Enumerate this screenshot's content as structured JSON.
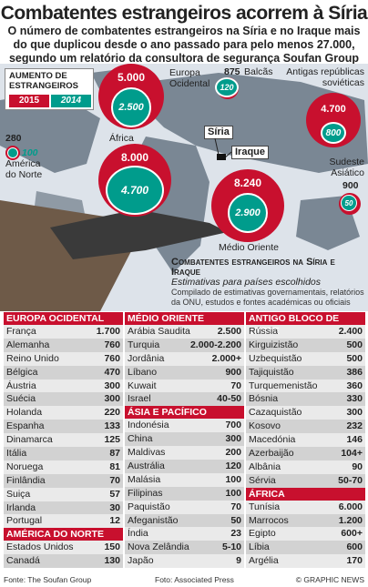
{
  "title": "Combatentes estrangeiros acorrem à Síria",
  "subtitle": "O número de combatentes estrangeiros na Síria e no Iraque mais do que duplicou desde o ano passado para pelo menos 27.000, segundo um relatório da consultora de segurança Soufan Group",
  "legend": {
    "title": "AUMENTO DE ESTRANGEIROS",
    "y2015": "2015",
    "y2014": "2014"
  },
  "colors": {
    "red": "#c8102e",
    "teal": "#009c8c"
  },
  "map": {
    "regions": [
      {
        "name": "Europa Ocidental",
        "v2015": "5.000",
        "v2014": "2.500"
      },
      {
        "name": "Balcãs",
        "v2015": "875",
        "v2014": "120"
      },
      {
        "name": "Antigas repúblicas soviéticas",
        "v2015": "4.700",
        "v2014": "800"
      },
      {
        "name": "América do Norte",
        "v2015": "280",
        "v2014": "100"
      },
      {
        "name": "África",
        "v2015": "8.000",
        "v2014": "4.700"
      },
      {
        "name": "Médio Oriente",
        "v2015": "8.240",
        "v2014": "2.900"
      },
      {
        "name": "Sudeste Asiático",
        "v2015": "900",
        "v2014": "50"
      }
    ],
    "siria": "Síria",
    "iraque": "Iraque"
  },
  "chart_info": {
    "title": "Combatentes estrangeiros na Síria e Iraque",
    "subtitle": "Estimativas para países escolhidos",
    "note": "Compilado de estimativas governamentais, relatórios da ONU, estudos e fontes académicas ou oficiais"
  },
  "chart_data": {
    "type": "table",
    "title": "Combatentes estrangeiros na Síria e Iraque",
    "groups": [
      {
        "name": "Europa Ocidental",
        "rows": [
          [
            "França",
            "1.700"
          ],
          [
            "Alemanha",
            "760"
          ],
          [
            "Reino Unido",
            "760"
          ],
          [
            "Bélgica",
            "470"
          ],
          [
            "Áustria",
            "300"
          ],
          [
            "Suécia",
            "300"
          ],
          [
            "Holanda",
            "220"
          ],
          [
            "Espanha",
            "133"
          ],
          [
            "Dinamarca",
            "125"
          ],
          [
            "Itália",
            "87"
          ],
          [
            "Noruega",
            "81"
          ],
          [
            "Finlândia",
            "70"
          ],
          [
            "Suiça",
            "57"
          ],
          [
            "Irlanda",
            "30"
          ],
          [
            "Portugal",
            "12"
          ]
        ]
      },
      {
        "name": "América do Norte",
        "rows": [
          [
            "Estados Unidos",
            "150"
          ],
          [
            "Canadá",
            "130"
          ]
        ]
      },
      {
        "name": "Médio Oriente",
        "rows": [
          [
            "Arábia Saudita",
            "2.500"
          ],
          [
            "Turquia",
            "2.000-2.200"
          ],
          [
            "Jordânia",
            "2.000+"
          ],
          [
            "Líbano",
            "900"
          ],
          [
            "Kuwait",
            "70"
          ],
          [
            "Israel",
            "40-50"
          ]
        ]
      },
      {
        "name": "Ásia e Pacífico",
        "rows": [
          [
            "Indonésia",
            "700"
          ],
          [
            "China",
            "300"
          ],
          [
            "Maldivas",
            "200"
          ],
          [
            "Austrália",
            "120"
          ],
          [
            "Malásia",
            "100"
          ],
          [
            "Filipinas",
            "100"
          ],
          [
            "Paquistão",
            "70"
          ],
          [
            "Afeganistão",
            "50"
          ],
          [
            "Índia",
            "23"
          ],
          [
            "Nova Zelândia",
            "5-10"
          ],
          [
            "Japão",
            "9"
          ]
        ]
      },
      {
        "name": "Antigo Bloco de Leste",
        "rows": [
          [
            "Rússia",
            "2.400"
          ],
          [
            "Kirguizistão",
            "500"
          ],
          [
            "Uzbequistão",
            "500"
          ],
          [
            "Tajiquistão",
            "386"
          ],
          [
            "Turquemenistão",
            "360"
          ],
          [
            "Bósnia",
            "330"
          ],
          [
            "Cazaquistão",
            "300"
          ],
          [
            "Kosovo",
            "232"
          ],
          [
            "Macedónia",
            "146"
          ],
          [
            "Azerbaijão",
            "104+"
          ],
          [
            "Albânia",
            "90"
          ],
          [
            "Sérvia",
            "50-70"
          ]
        ]
      },
      {
        "name": "África",
        "rows": [
          [
            "Tunísia",
            "6.000"
          ],
          [
            "Marrocos",
            "1.200"
          ],
          [
            "Egipto",
            "600+"
          ],
          [
            "Líbia",
            "600"
          ],
          [
            "Argélia",
            "170"
          ]
        ]
      }
    ]
  },
  "footer": {
    "source": "Fonte: The Soufan Group",
    "photo": "Foto: Associated Press",
    "credit": "© GRAPHIC NEWS"
  }
}
